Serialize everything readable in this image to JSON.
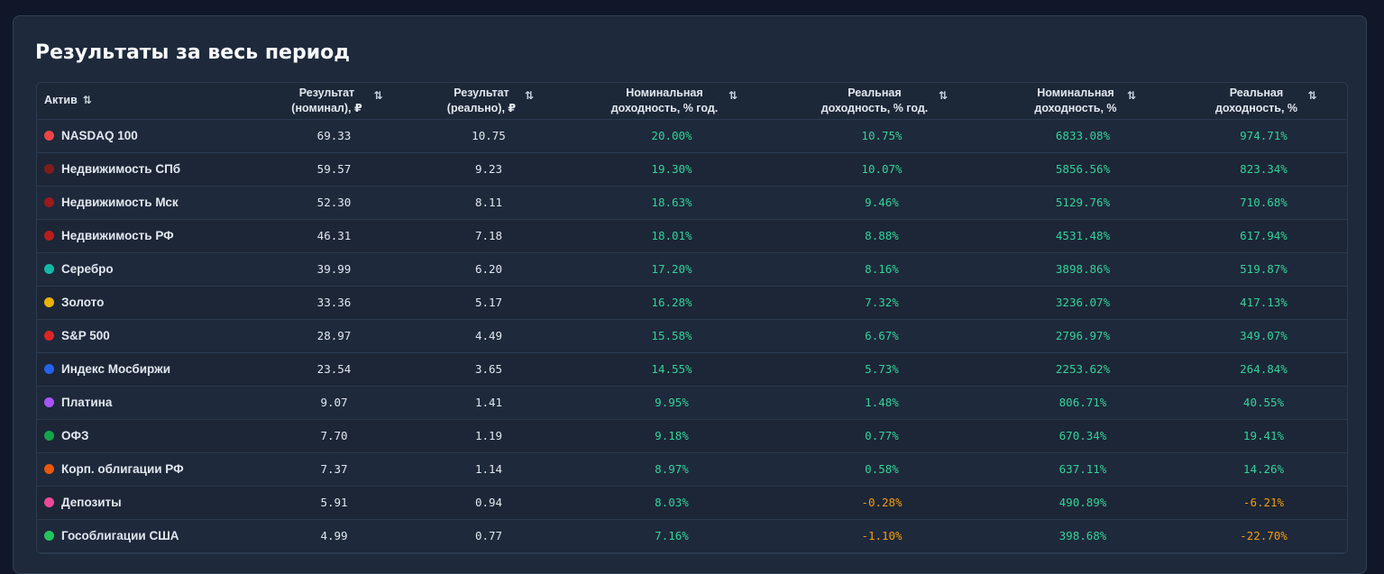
{
  "panel": {
    "title": "Результаты за весь период"
  },
  "table": {
    "columns": [
      {
        "label": "Актив",
        "sort_icon": "⇅"
      },
      {
        "label": "Результат (номинал), ₽",
        "sort_icon": "⇅"
      },
      {
        "label": "Результат (реально), ₽",
        "sort_icon": "⇅"
      },
      {
        "label": "Номинальная доходность, % год.",
        "sort_icon": "⇅"
      },
      {
        "label": "Реальная доходность, % год.",
        "sort_icon": "⇅"
      },
      {
        "label": "Номинальная доходность, %",
        "sort_icon": "⇅"
      },
      {
        "label": "Реальная доходность, %",
        "sort_icon": "⇅"
      }
    ],
    "rows": [
      {
        "name": "NASDAQ 100",
        "color": "#ef4444",
        "nominal": "69.33",
        "real": "10.75",
        "nom_annual": "20.00%",
        "real_annual": "10.75%",
        "nom_total": "6833.08%",
        "real_total": "974.71%"
      },
      {
        "name": "Недвижимость СПб",
        "color": "#7f1d1d",
        "nominal": "59.57",
        "real": "9.23",
        "nom_annual": "19.30%",
        "real_annual": "10.07%",
        "nom_total": "5856.56%",
        "real_total": "823.34%"
      },
      {
        "name": "Недвижимость Мск",
        "color": "#991b1b",
        "nominal": "52.30",
        "real": "8.11",
        "nom_annual": "18.63%",
        "real_annual": "9.46%",
        "nom_total": "5129.76%",
        "real_total": "710.68%"
      },
      {
        "name": "Недвижимость РФ",
        "color": "#b91c1c",
        "nominal": "46.31",
        "real": "7.18",
        "nom_annual": "18.01%",
        "real_annual": "8.88%",
        "nom_total": "4531.48%",
        "real_total": "617.94%"
      },
      {
        "name": "Серебро",
        "color": "#14b8a6",
        "nominal": "39.99",
        "real": "6.20",
        "nom_annual": "17.20%",
        "real_annual": "8.16%",
        "nom_total": "3898.86%",
        "real_total": "519.87%"
      },
      {
        "name": "Золото",
        "color": "#eab308",
        "nominal": "33.36",
        "real": "5.17",
        "nom_annual": "16.28%",
        "real_annual": "7.32%",
        "nom_total": "3236.07%",
        "real_total": "417.13%"
      },
      {
        "name": "S&P 500",
        "color": "#dc2626",
        "nominal": "28.97",
        "real": "4.49",
        "nom_annual": "15.58%",
        "real_annual": "6.67%",
        "nom_total": "2796.97%",
        "real_total": "349.07%"
      },
      {
        "name": "Индекс Мосбиржи",
        "color": "#2563eb",
        "nominal": "23.54",
        "real": "3.65",
        "nom_annual": "14.55%",
        "real_annual": "5.73%",
        "nom_total": "2253.62%",
        "real_total": "264.84%"
      },
      {
        "name": "Платина",
        "color": "#a855f7",
        "nominal": "9.07",
        "real": "1.41",
        "nom_annual": "9.95%",
        "real_annual": "1.48%",
        "nom_total": "806.71%",
        "real_total": "40.55%"
      },
      {
        "name": "ОФЗ",
        "color": "#16a34a",
        "nominal": "7.70",
        "real": "1.19",
        "nom_annual": "9.18%",
        "real_annual": "0.77%",
        "nom_total": "670.34%",
        "real_total": "19.41%"
      },
      {
        "name": "Корп. облигации РФ",
        "color": "#ea580c",
        "nominal": "7.37",
        "real": "1.14",
        "nom_annual": "8.97%",
        "real_annual": "0.58%",
        "nom_total": "637.11%",
        "real_total": "14.26%"
      },
      {
        "name": "Депозиты",
        "color": "#ec4899",
        "nominal": "5.91",
        "real": "0.94",
        "nom_annual": "8.03%",
        "real_annual": "-0.28%",
        "nom_total": "490.89%",
        "real_total": "-6.21%"
      },
      {
        "name": "Гособлигации США",
        "color": "#22c55e",
        "nominal": "4.99",
        "real": "0.77",
        "nom_annual": "7.16%",
        "real_annual": "-1.10%",
        "nom_total": "398.68%",
        "real_total": "-22.70%"
      }
    ]
  },
  "colors": {
    "positive": "#34d399",
    "negative": "#f59e0b",
    "background": "#0f1729",
    "panel": "#1e293b"
  }
}
